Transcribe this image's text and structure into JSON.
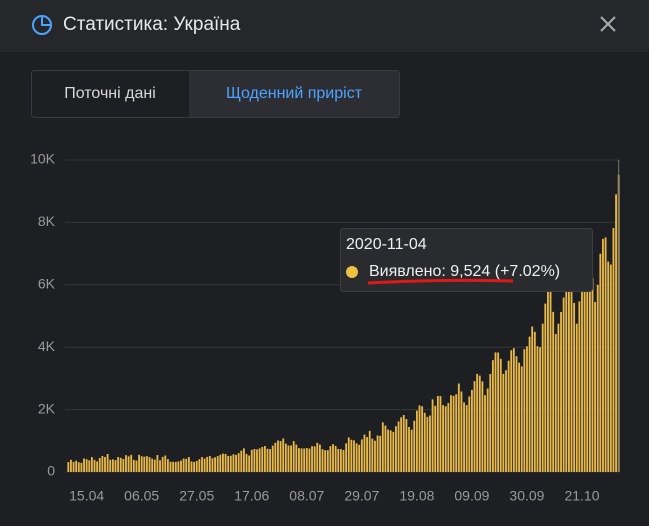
{
  "header": {
    "title": "Статистика: Україна"
  },
  "tabs": [
    "Поточні дані",
    "Щоденний приріст"
  ],
  "chart_data": {
    "type": "bar",
    "color": "#e9b949",
    "grid": true,
    "ylim": [
      0,
      10000
    ],
    "yticks": [
      0,
      {
        "value": 2000,
        "label": "2K"
      },
      {
        "value": 4000,
        "label": "4K"
      },
      {
        "value": 6000,
        "label": "6K"
      },
      {
        "value": 8000,
        "label": "8K"
      },
      {
        "value": 10000,
        "label": "10K"
      }
    ],
    "categories": [
      null,
      null,
      null,
      null,
      null,
      null,
      null,
      "15.04",
      null,
      null,
      null,
      null,
      null,
      null,
      null,
      null,
      null,
      null,
      null,
      null,
      null,
      null,
      null,
      null,
      null,
      null,
      null,
      null,
      "06.05",
      null,
      null,
      null,
      null,
      null,
      null,
      null,
      null,
      null,
      null,
      null,
      null,
      null,
      null,
      null,
      null,
      null,
      null,
      null,
      null,
      "27.05",
      null,
      null,
      null,
      null,
      null,
      null,
      null,
      null,
      null,
      null,
      null,
      null,
      null,
      null,
      null,
      null,
      null,
      null,
      null,
      null,
      "17.06",
      null,
      null,
      null,
      null,
      null,
      null,
      null,
      null,
      null,
      null,
      null,
      null,
      null,
      null,
      null,
      null,
      null,
      null,
      null,
      null,
      "08.07",
      null,
      null,
      null,
      null,
      null,
      null,
      null,
      null,
      null,
      null,
      null,
      null,
      null,
      null,
      null,
      null,
      null,
      null,
      null,
      null,
      "29.07",
      null,
      null,
      null,
      null,
      null,
      null,
      null,
      null,
      null,
      null,
      null,
      null,
      null,
      null,
      null,
      null,
      null,
      null,
      null,
      null,
      "19.08",
      null,
      null,
      null,
      null,
      null,
      null,
      null,
      null,
      null,
      null,
      null,
      null,
      null,
      null,
      null,
      null,
      null,
      null,
      null,
      null,
      "09.09",
      null,
      null,
      null,
      null,
      null,
      null,
      null,
      null,
      null,
      null,
      null,
      null,
      null,
      null,
      null,
      null,
      null,
      null,
      null,
      null,
      "30.09",
      null,
      null,
      null,
      null,
      null,
      null,
      null,
      null,
      null,
      null,
      null,
      null,
      null,
      null,
      null,
      null,
      null,
      null,
      null,
      null,
      "21.10",
      null,
      null,
      null,
      null,
      null,
      null,
      null,
      null,
      null,
      null,
      null,
      null,
      null,
      null
    ],
    "values": [
      318,
      392,
      325,
      362,
      311,
      296,
      432,
      411,
      377,
      478,
      392,
      339,
      449,
      513,
      480,
      577,
      392,
      405,
      380,
      477,
      456,
      418,
      540,
      502,
      550,
      390,
      368,
      550,
      504,
      492,
      507,
      477,
      427,
      396,
      544,
      375,
      484,
      528,
      413,
      329,
      323,
      325,
      337,
      367,
      431,
      422,
      479,
      339,
      323,
      353,
      410,
      477,
      432,
      483,
      513,
      442,
      472,
      510,
      553,
      589,
      577,
      515,
      520,
      568,
      548,
      606,
      683,
      758,
      580,
      527,
      711,
      737,
      722,
      757,
      801,
      834,
      745,
      735,
      845,
      937,
      1011,
      990,
      1073,
      911,
      850,
      849,
      989,
      878,
      767,
      757,
      754,
      768,
      753,
      825,
      823,
      935,
      878,
      730,
      699,
      702,
      828,
      891,
      835,
      739,
      733,
      704,
      918,
      1109,
      1033,
      1013,
      918,
      871,
      1044,
      1197,
      1121,
      1318,
      1070,
      1003,
      1172,
      1158,
      1592,
      1489,
      1361,
      1334,
      1286,
      1467,
      1619,
      1753,
      1826,
      1696,
      1442,
      1357,
      1643,
      1967,
      2134,
      2106,
      1899,
      1767,
      1809,
      2328,
      2123,
      2438,
      2432,
      2141,
      2107,
      2209,
      2462,
      2438,
      2493,
      2836,
      2581,
      2230,
      2145,
      2419,
      2632,
      2912,
      3144,
      3088,
      2905,
      2462,
      2676,
      3141,
      3584,
      3833,
      3828,
      3627,
      3144,
      3262,
      3565,
      3903,
      3970,
      3711,
      3506,
      3385,
      3937,
      4027,
      4338,
      4661,
      4493,
      4033,
      4000,
      4753,
      5397,
      5804,
      5849,
      5133,
      4420,
      4755,
      5130,
      5592,
      5804,
      5931,
      6003,
      5417,
      4753,
      5469,
      6018,
      6140,
      6719,
      6410,
      6220,
      5449,
      5996,
      6996,
      7474,
      7517,
      6746,
      6650,
      7821,
      8899,
      9524
    ],
    "tooltip": {
      "date": "2020-11-04",
      "label": "Виявлено: 9,524 (+7.02%)"
    }
  }
}
